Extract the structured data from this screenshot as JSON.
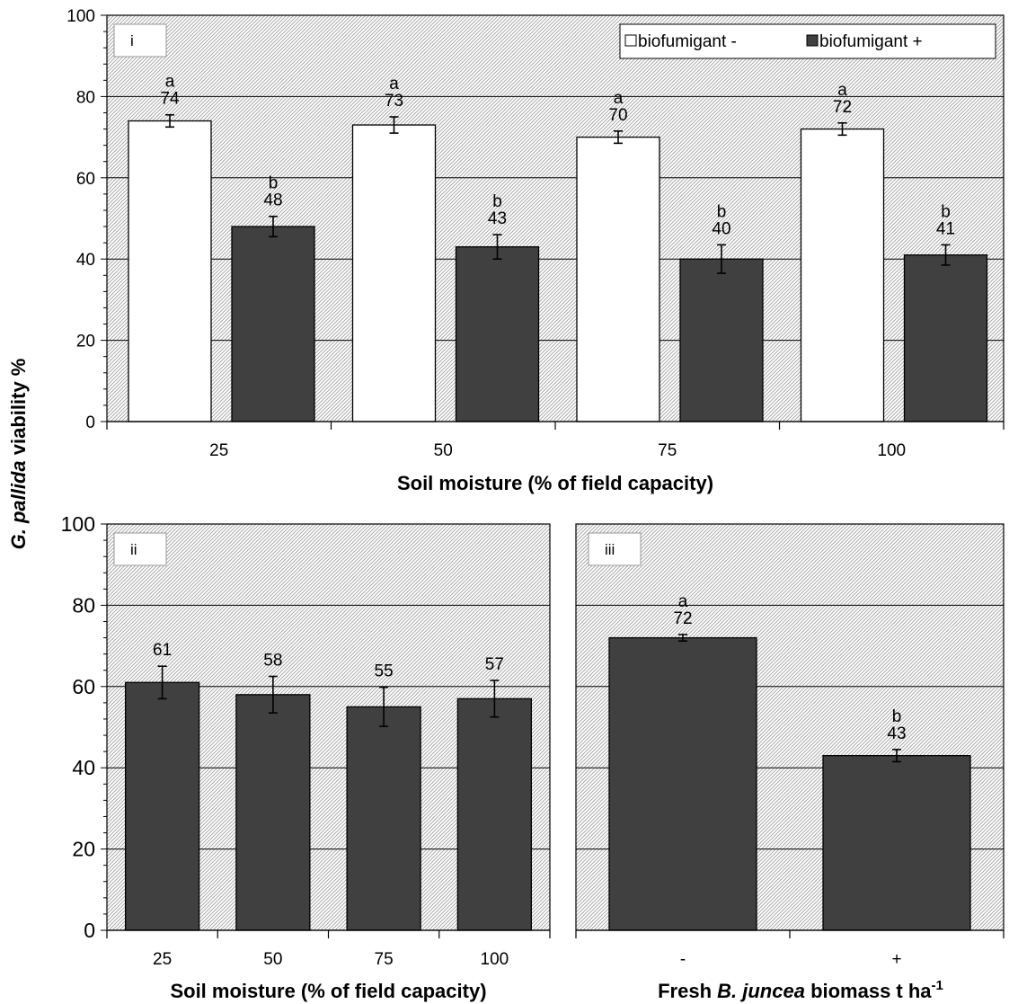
{
  "ylabel_prefix": "G. pallida",
  "ylabel_suffix": " viability %",
  "chart_data": [
    {
      "panel": "i",
      "type": "bar",
      "categories": [
        "25",
        "50",
        "75",
        "100"
      ],
      "xlabel": "Soil moisture (% of field capacity)",
      "ylim": [
        0,
        100
      ],
      "yticks": [
        "0",
        "20",
        "40",
        "60",
        "80",
        "100"
      ],
      "grid": true,
      "legend": "top-right",
      "series": [
        {
          "name": "biofumigant -",
          "color": "#ffffff",
          "values": [
            74,
            73,
            70,
            72
          ],
          "errors": [
            1.5,
            2.0,
            1.5,
            1.5
          ],
          "letters": [
            "a",
            "a",
            "a",
            "a"
          ],
          "labels": [
            "74",
            "73",
            "70",
            "72"
          ]
        },
        {
          "name": "biofumigant +",
          "color": "#404040",
          "values": [
            48,
            43,
            40,
            41
          ],
          "errors": [
            2.5,
            3.0,
            3.5,
            2.5
          ],
          "letters": [
            "b",
            "b",
            "b",
            "b"
          ],
          "labels": [
            "48",
            "43",
            "40",
            "41"
          ]
        }
      ]
    },
    {
      "panel": "ii",
      "type": "bar",
      "categories": [
        "25",
        "50",
        "75",
        "100"
      ],
      "xlabel": "Soil moisture (% of field capacity)",
      "ylim": [
        0,
        100
      ],
      "yticks": [
        "0",
        "20",
        "40",
        "60",
        "80",
        "100"
      ],
      "grid": true,
      "series": [
        {
          "color": "#404040",
          "values": [
            61,
            58,
            55,
            57
          ],
          "errors": [
            4.0,
            4.5,
            4.8,
            4.5
          ],
          "letters": [
            "",
            "",
            "",
            ""
          ],
          "labels": [
            "61",
            "58",
            "55",
            "57"
          ]
        }
      ]
    },
    {
      "panel": "iii",
      "type": "bar",
      "categories": [
        "-",
        "+"
      ],
      "xlabel_parts": [
        "Fresh ",
        "B. juncea",
        " biomass t ha",
        "-1"
      ],
      "ylim": [
        0,
        100
      ],
      "grid": true,
      "series": [
        {
          "color": "#404040",
          "values": [
            72,
            43
          ],
          "errors": [
            0.8,
            1.5
          ],
          "letters": [
            "a",
            "b"
          ],
          "labels": [
            "72",
            "43"
          ]
        }
      ]
    }
  ]
}
